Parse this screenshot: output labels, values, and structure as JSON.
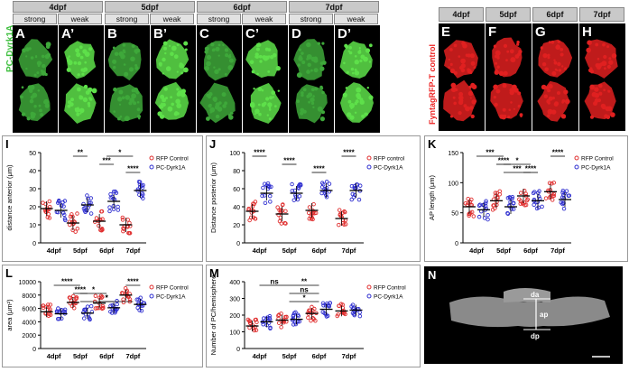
{
  "headers": {
    "days": [
      "4dpf",
      "5dpf",
      "6dpf",
      "7dpf"
    ],
    "strong": "strong",
    "weak": "weak",
    "right_days": [
      "4dpf",
      "5dpf",
      "6dpf",
      "7dpf"
    ]
  },
  "panels_top": {
    "green_letters": [
      "A",
      "A’",
      "B",
      "B’",
      "C",
      "C’",
      "D",
      "D’"
    ],
    "red_letters": [
      "E",
      "F",
      "G",
      "H"
    ],
    "green_side_label": "PC-Dyrk1A",
    "red_side_label": "FyntagRFP-T control"
  },
  "colors": {
    "red": "#e03030",
    "blue": "#3030d0",
    "green": "#38d830"
  },
  "charts": [
    {
      "id": "I",
      "ylabel": "distance anterior (μm)",
      "yticks": [
        "0",
        "10",
        "20",
        "30",
        "40",
        "50"
      ],
      "ylim": [
        0,
        50
      ],
      "xcats": [
        "4dpf",
        "5dpf",
        "6dpf",
        "7dpf"
      ],
      "legend": [
        "RFP Control",
        "PC-Dyrk1A"
      ],
      "red_means": [
        19,
        11,
        12,
        10
      ],
      "blue_means": [
        18,
        21,
        23,
        29
      ],
      "sigs": [
        {
          "text": "**",
          "from": 1,
          "to": 1
        },
        {
          "text": "***",
          "from": 2,
          "to": 2
        },
        {
          "text": "****",
          "from": 3,
          "to": 3
        },
        {
          "text": "*",
          "from": 2,
          "to": 3
        }
      ]
    },
    {
      "id": "J",
      "ylabel": "Distance posterior (μm)",
      "yticks": [
        "0",
        "20",
        "40",
        "60",
        "80",
        "100"
      ],
      "ylim": [
        0,
        100
      ],
      "xcats": [
        "4dpf",
        "5dpf",
        "6dpf",
        "7dpf"
      ],
      "legend": [
        "RFP control",
        "PC-Dyrk1A"
      ],
      "red_means": [
        35,
        32,
        36,
        27
      ],
      "blue_means": [
        55,
        55,
        58,
        58
      ],
      "sigs": [
        {
          "text": "****",
          "from": 0,
          "to": 0
        },
        {
          "text": "****",
          "from": 1,
          "to": 1
        },
        {
          "text": "****",
          "from": 2,
          "to": 2
        },
        {
          "text": "****",
          "from": 3,
          "to": 3
        }
      ]
    },
    {
      "id": "K",
      "ylabel": "AP length (μm)",
      "yticks": [
        "0",
        "50",
        "100",
        "150"
      ],
      "ylim": [
        0,
        150
      ],
      "xcats": [
        "4dpf",
        "5dpf",
        "6dpf",
        "7dpf"
      ],
      "legend": [
        "RFP Control",
        "PC-Dyrk1A"
      ],
      "red_means": [
        60,
        70,
        78,
        85
      ],
      "blue_means": [
        55,
        60,
        70,
        72
      ],
      "sigs": [
        {
          "text": "***",
          "from": 0,
          "to": 1
        },
        {
          "text": "****",
          "from": 1,
          "to": 1
        },
        {
          "text": "****",
          "from": 2,
          "to": 2
        },
        {
          "text": "****",
          "from": 3,
          "to": 3
        },
        {
          "text": "*",
          "from": 1,
          "to": 2
        },
        {
          "text": "***",
          "from": 1,
          "to": 2
        }
      ]
    },
    {
      "id": "L",
      "ylabel": "area (μm²)",
      "yticks": [
        "0",
        "2000",
        "4000",
        "6000",
        "8000",
        "10000"
      ],
      "ylim": [
        0,
        10000
      ],
      "xcats": [
        "4dpf",
        "5dpf",
        "6dpf",
        "7dpf"
      ],
      "legend": [
        "RFP Control",
        "PC-Dyrk1A"
      ],
      "red_means": [
        5500,
        6900,
        6800,
        8000
      ],
      "blue_means": [
        5200,
        5300,
        6100,
        6600
      ],
      "sigs": [
        {
          "text": "****",
          "from": 0,
          "to": 1
        },
        {
          "text": "****",
          "from": 1,
          "to": 1
        },
        {
          "text": "*",
          "from": 2,
          "to": 2
        },
        {
          "text": "****",
          "from": 3,
          "to": 3
        },
        {
          "text": "*",
          "from": 1,
          "to": 2
        },
        {
          "text": "*",
          "from": 1,
          "to": 3
        }
      ]
    },
    {
      "id": "M",
      "ylabel": "Number of PC/hemisphere",
      "yticks": [
        "0",
        "100",
        "200",
        "300",
        "400"
      ],
      "ylim": [
        0,
        400
      ],
      "xcats": [
        "4dpf",
        "5dpf",
        "6dpf",
        "7dpf"
      ],
      "legend": [
        "RFP Control",
        "PC-Dyrk1A"
      ],
      "red_means": [
        135,
        170,
        210,
        225
      ],
      "blue_means": [
        160,
        175,
        235,
        230
      ],
      "sigs": [
        {
          "text": "ns",
          "from": 0,
          "to": 1
        },
        {
          "text": "ns",
          "from": 1,
          "to": 2
        },
        {
          "text": "*",
          "from": 1,
          "to": 2
        },
        {
          "text": "**",
          "from": 1,
          "to": 2
        }
      ]
    }
  ],
  "panel_n": {
    "letter": "N",
    "da": "da",
    "dp": "dp",
    "ap": "ap"
  }
}
